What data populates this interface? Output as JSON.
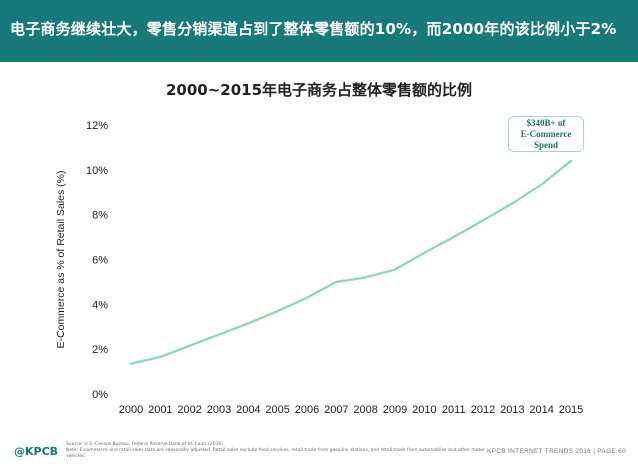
{
  "header": {
    "text": "电子商务继续壮大，零售分销渠道占到了整体零售额的10%，而2000年的该比例小于2%"
  },
  "chart_data": {
    "type": "line",
    "title": "2000~2015年电子商务占整体零售额的比例",
    "ylabel": "E-Commerce as % of Retail Sales (%)",
    "xlabel": "",
    "ylim": [
      0,
      12
    ],
    "yticks": [
      "0%",
      "2%",
      "4%",
      "6%",
      "8%",
      "10%",
      "12%"
    ],
    "x": [
      "2000",
      "2001",
      "2002",
      "2003",
      "2004",
      "2005",
      "2006",
      "2007",
      "2008",
      "2009",
      "2010",
      "2011",
      "2012",
      "2013",
      "2014",
      "2015"
    ],
    "series": [
      {
        "values": [
          1.35,
          1.65,
          2.15,
          2.65,
          3.15,
          3.7,
          4.3,
          5.0,
          5.2,
          5.55,
          6.3,
          7.0,
          7.75,
          8.5,
          9.35,
          10.4
        ],
        "color": "#8fd9b4"
      }
    ],
    "grid": false,
    "legend": "none"
  },
  "callout": {
    "line1": "$340B+ of",
    "line2": "E-Commerce",
    "line3": "Spend"
  },
  "brand": "@KPCB",
  "source": {
    "line1": "Source: U.S. Census Bureau, Federal Reserve Bank of St. Louis (2016)",
    "line2": "Note: E-commerce and retail sales data are seasonally adjusted. Retail sales exclude food services, retail trade from gasoline stations, and retail trade from automobiles and other motor vehicles."
  },
  "footer": "KPCB INTERNET TRENDS 2016  |  PAGE 60"
}
